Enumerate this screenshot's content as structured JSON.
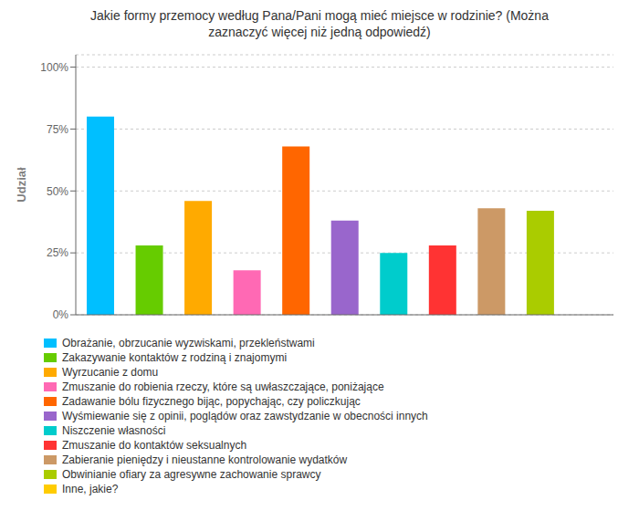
{
  "chart_data": {
    "type": "bar",
    "title": "Jakie formy przemocy według Pana/Pani mogą mieć miejsce w rodzinie? (Można\nzaznaczyć więcej niż jedną odpowiedź)",
    "ylabel": "Udział",
    "categories": [
      "Obrażanie, obrzucanie wyzwiskami, przekleństwami",
      "Zakazywanie kontaktów z rodziną i znajomymi",
      "Wyrzucanie z domu",
      "Zmuszanie do robienia rzeczy, które są uwłaszczające, poniżające",
      "Zadawanie bólu fizycznego bijąc, popychając, czy policzkując",
      "Wyśmiewanie się z opinii, poglądów oraz zawstydzanie w obecności innych",
      "Niszczenie własności",
      "Zmuszanie do kontaktów seksualnych",
      "Zabieranie pieniędzy i nieustanne kontrolowanie wydatków",
      "Obwinianie ofiary za agresywne zachowanie sprawcy",
      "Inne, jakie?"
    ],
    "values": [
      80,
      28,
      46,
      18,
      68,
      38,
      25,
      28,
      43,
      42,
      0
    ],
    "colors": [
      "#00bfff",
      "#66cc00",
      "#ffaa00",
      "#ff69b4",
      "#ff6600",
      "#9966cc",
      "#00cccc",
      "#ff3333",
      "#cc9966",
      "#aacc00",
      "#ffcc00"
    ],
    "ylim": [
      0,
      105
    ],
    "yticks": [
      {
        "value": 0,
        "label": "0%"
      },
      {
        "value": 25,
        "label": "25%"
      },
      {
        "value": 50,
        "label": "50%"
      },
      {
        "value": 75,
        "label": "75%"
      },
      {
        "value": 100,
        "label": "100%"
      }
    ],
    "grid": true,
    "legend": "bottom",
    "tick_labels": "y"
  }
}
